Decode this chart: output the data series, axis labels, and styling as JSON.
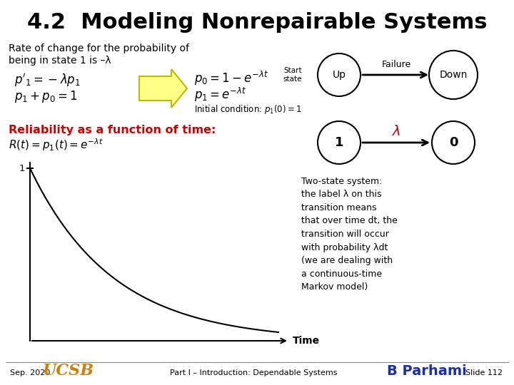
{
  "title": "4.2  Modeling Nonrepairable Systems",
  "title_fontsize": 22,
  "bg_color": "#ffffff",
  "text_color": "#000000",
  "red_color": "#cc0000",
  "slide_number": "Slide 112",
  "footer_left": "Sep. 2020",
  "footer_center": "Part I – Introduction: Dependable Systems",
  "state_diagram_desc": "Two-state system:\nthe label λ on this\ntransition means\nthat over time dt, the\ntransition will occur\nwith probability λdt\n(we are dealing with\na continuous-time\nMarkov model)",
  "node1_label": "Up",
  "node2_label": "Down",
  "node3_label": "1",
  "node4_label": "0",
  "arc1_label": "Failure",
  "start_state_label": "Start\nstate",
  "time_label": "Time",
  "plot_lambda": 3.0
}
